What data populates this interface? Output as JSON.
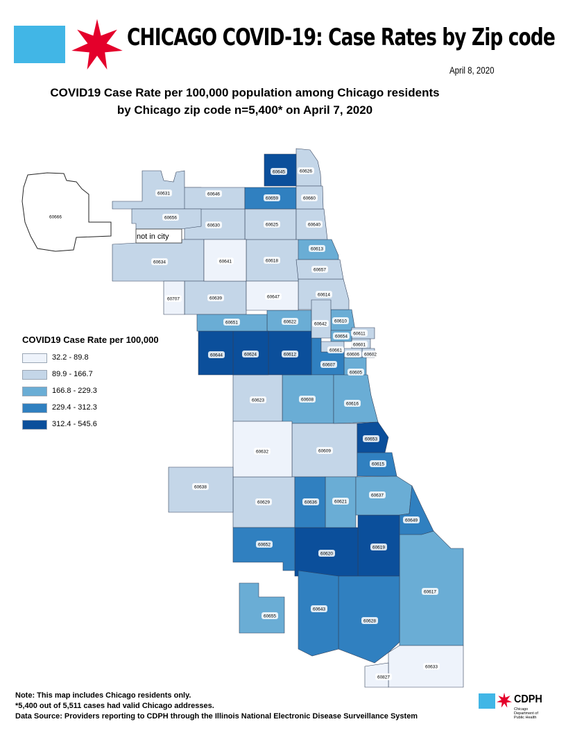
{
  "header": {
    "title": "CHICAGO COVID-19: Case Rates by Zip code",
    "date": "April 8, 2020",
    "map_title_line1": "COVID19 Case Rate per 100,000 population among Chicago residents",
    "map_title_line2": "by Chicago zip code n=5,400* on April 7, 2020",
    "flag_colors": {
      "blue": "#41b6e6",
      "star": "#e4002b"
    }
  },
  "legend": {
    "title": "COVID19 Case Rate per 100,000",
    "classes": [
      {
        "label": "32.2 - 89.8",
        "color": "#eef3fb"
      },
      {
        "label": "89.9 - 166.7",
        "color": "#c4d6e8"
      },
      {
        "label": "166.8 - 229.3",
        "color": "#6aadd5"
      },
      {
        "label": "229.4 - 312.3",
        "color": "#3080c0"
      },
      {
        "label": "312.4 - 545.6",
        "color": "#0b4f9b"
      }
    ]
  },
  "map": {
    "not_in_city_label": "not in city",
    "zips": {
      "60645": 4,
      "60626": 1,
      "60631": 1,
      "60646": 1,
      "60659": 3,
      "60660": 1,
      "60656": 1,
      "60630": 1,
      "60625": 1,
      "60640": 1,
      "60613": 2,
      "60634": 1,
      "60641": 0,
      "60618": 1,
      "60657": 1,
      "60707": 0,
      "60639": 1,
      "60647": 0,
      "60614": 1,
      "60651": 2,
      "60622": 2,
      "60642": 1,
      "60610": 2,
      "60644": 4,
      "60624": 4,
      "60612": 4,
      "60654": 2,
      "60611": 1,
      "60601": 1,
      "60661": 1,
      "60606": 1,
      "60602": 1,
      "60607": 3,
      "60605": 2,
      "60623": 1,
      "60608": 2,
      "60616": 2,
      "60653": 4,
      "60632": 0,
      "60609": 1,
      "60615": 3,
      "60638": 1,
      "60629": 1,
      "60636": 3,
      "60621": 2,
      "60637": 2,
      "60649": 3,
      "60652": 3,
      "60620": 4,
      "60619": 4,
      "60617": 2,
      "60655": 2,
      "60643": 3,
      "60628": 3,
      "60633": 0,
      "60827": 0,
      "60666": null
    }
  },
  "footer": {
    "note1": "Note: This map includes Chicago residents only.",
    "note2": "*5,400 out of 5,511 cases had valid Chicago addresses.",
    "note3": "Data Source: Providers reporting to CDPH through the Illinois National Electronic Disease Surveillance System",
    "logo_text": "CDPH",
    "logo_sub": "Chicago Department of Public Health"
  }
}
